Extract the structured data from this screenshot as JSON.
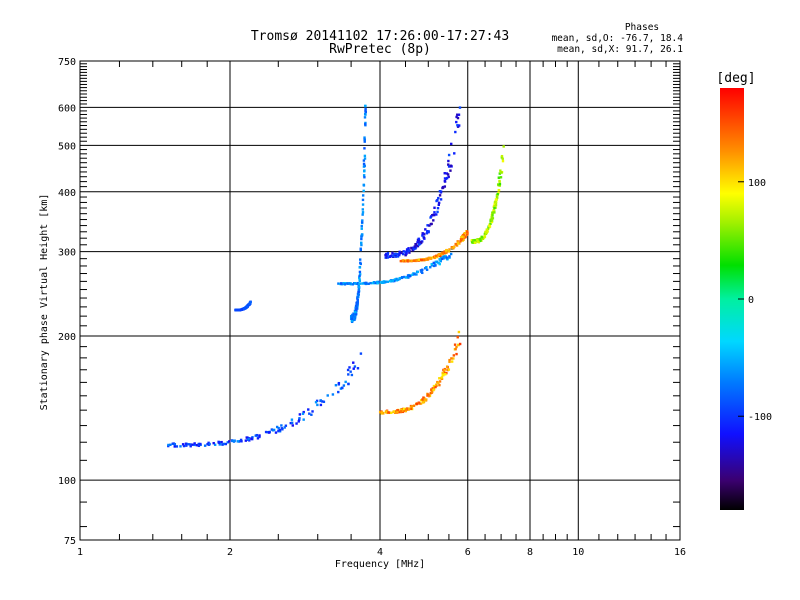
{
  "chart_data": {
    "type": "scatter",
    "title": "Tromsø 20141102 17:26:00-17:27:43",
    "subtitle": "RwPretec (8p)",
    "xlabel": "Frequency [MHz]",
    "ylabel": "Stationary phase Virtual Height [km]",
    "x_scale": "log",
    "y_scale": "log",
    "xlim": [
      1,
      16
    ],
    "ylim": [
      75,
      750
    ],
    "x_ticks": [
      "1",
      "2",
      "4",
      "6",
      "8",
      "10",
      "16"
    ],
    "x_tick_values": [
      1,
      2,
      4,
      6,
      8,
      10,
      16
    ],
    "y_ticks": [
      "75",
      "100",
      "200",
      "300",
      "400",
      "500",
      "600",
      "750"
    ],
    "y_tick_values": [
      75,
      100,
      200,
      300,
      400,
      500,
      600,
      750
    ],
    "grid": true,
    "phases_panel": {
      "title": "Phases",
      "line_o": "mean, sd,O: -76.7, 18.4",
      "line_x": "mean, sd,X:  91.7, 26.1"
    },
    "colorbar": {
      "label": "[deg]",
      "range": [
        -180,
        180
      ],
      "ticks": [
        "100",
        "0",
        "-100"
      ],
      "tick_values": [
        100,
        0,
        -100
      ]
    },
    "traces": [
      {
        "freq_range": [
          1.5,
          3.7
        ],
        "height_range": [
          110,
          180
        ],
        "phase_range": [
          -120,
          -60
        ]
      },
      {
        "freq_range": [
          3.5,
          3.75
        ],
        "height_range": [
          180,
          640
        ],
        "phase_range": [
          -90,
          -50
        ]
      },
      {
        "freq_range": [
          3.3,
          5.6
        ],
        "height_range": [
          250,
          300
        ],
        "phase_range": [
          -90,
          -40
        ]
      },
      {
        "freq_range": [
          4.1,
          5.8
        ],
        "height_range": [
          260,
          600
        ],
        "phase_range": [
          -140,
          -90
        ]
      },
      {
        "freq_range": [
          4.0,
          5.8
        ],
        "height_range": [
          130,
          200
        ],
        "phase_range": [
          90,
          160
        ]
      },
      {
        "freq_range": [
          4.4,
          6.0
        ],
        "height_range": [
          280,
          330
        ],
        "phase_range": [
          100,
          160
        ]
      },
      {
        "freq_range": [
          6.1,
          7.1
        ],
        "height_range": [
          290,
          500
        ],
        "phase_range": [
          40,
          90
        ]
      },
      {
        "freq_range": [
          2.05,
          2.2
        ],
        "height_range": [
          225,
          235
        ],
        "phase_range": [
          -100,
          -80
        ]
      }
    ]
  }
}
